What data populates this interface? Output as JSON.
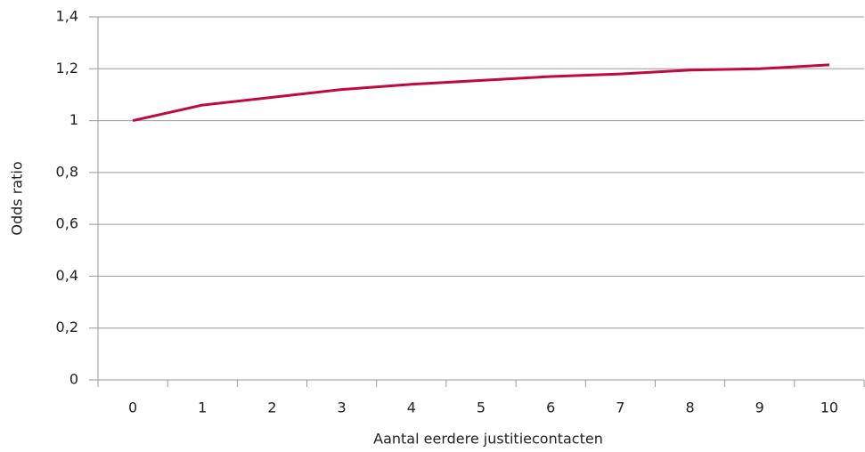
{
  "chart_data": {
    "type": "line",
    "x_label": "Aantal eerdere  justitiecontacten",
    "y_label": "Odds ratio",
    "categories": [
      "0",
      "1",
      "2",
      "3",
      "4",
      "5",
      "6",
      "7",
      "8",
      "9",
      "10"
    ],
    "series": [
      {
        "name": "Odds ratio",
        "color": "#c0093f",
        "values": [
          1.0,
          1.06,
          1.09,
          1.12,
          1.14,
          1.155,
          1.17,
          1.18,
          1.195,
          1.2,
          1.215
        ]
      }
    ],
    "ylim": [
      0,
      1.4
    ],
    "yticks": [
      0,
      {
        "value": 0.2,
        "label": "0,2"
      },
      {
        "value": 0.4,
        "label": "0,4"
      },
      {
        "value": 0.6,
        "label": "0,6"
      },
      {
        "value": 0.8,
        "label": "0,8"
      },
      1,
      {
        "value": 1.2,
        "label": "1,2"
      },
      {
        "value": 1.4,
        "label": "1,4"
      }
    ],
    "grid": true
  }
}
